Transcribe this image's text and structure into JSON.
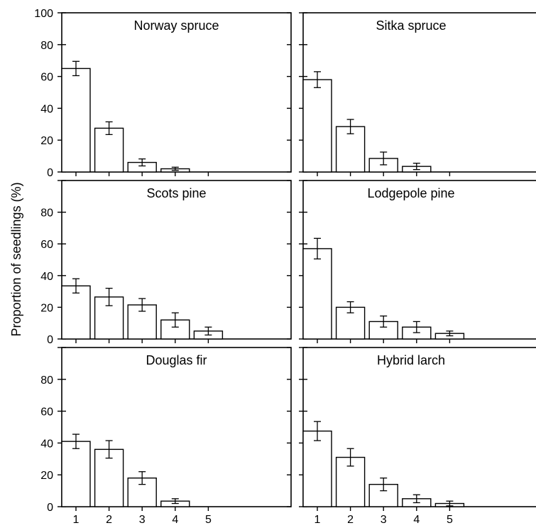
{
  "figure": {
    "ylabel": "Proportion of seedlings (%)"
  },
  "chart_data": [
    {
      "type": "bar",
      "title": "Norway spruce",
      "categories": [
        "1",
        "2",
        "3",
        "4",
        "5"
      ],
      "values": [
        65,
        27.5,
        6,
        2,
        0
      ],
      "errors": [
        4.5,
        4,
        2.2,
        1,
        0
      ],
      "ylim": [
        0,
        100
      ],
      "yticks": [
        0,
        20,
        40,
        60,
        80,
        100
      ],
      "xlabel": "",
      "ylabel": "Proportion of seedlings (%)"
    },
    {
      "type": "bar",
      "title": "Sitka spruce",
      "categories": [
        "1",
        "2",
        "3",
        "4",
        "5"
      ],
      "values": [
        58,
        28.5,
        8.5,
        3.5,
        0
      ],
      "errors": [
        5,
        4.5,
        4,
        2,
        0
      ],
      "ylim": [
        0,
        100
      ],
      "yticks": [],
      "xlabel": "",
      "ylabel": ""
    },
    {
      "type": "bar",
      "title": "Scots pine",
      "categories": [
        "1",
        "2",
        "3",
        "4",
        "5"
      ],
      "values": [
        33.5,
        26.5,
        21.5,
        12,
        5
      ],
      "errors": [
        4.5,
        5.5,
        4,
        4.5,
        2.5
      ],
      "ylim": [
        0,
        100
      ],
      "yticks": [
        0,
        20,
        40,
        60,
        80
      ],
      "xlabel": "",
      "ylabel": ""
    },
    {
      "type": "bar",
      "title": "Lodgepole pine",
      "categories": [
        "1",
        "2",
        "3",
        "4",
        "5"
      ],
      "values": [
        57,
        20,
        11,
        7.5,
        3.5
      ],
      "errors": [
        6.5,
        3.5,
        3.5,
        3.5,
        1.5
      ],
      "ylim": [
        0,
        100
      ],
      "yticks": [],
      "xlabel": "",
      "ylabel": ""
    },
    {
      "type": "bar",
      "title": "Douglas fir",
      "categories": [
        "1",
        "2",
        "3",
        "4",
        "5"
      ],
      "values": [
        41,
        36,
        18,
        3.5,
        0
      ],
      "errors": [
        4.5,
        5.5,
        4,
        1.5,
        0
      ],
      "ylim": [
        0,
        100
      ],
      "yticks": [
        0,
        20,
        40,
        60,
        80
      ],
      "xlabel": "",
      "ylabel": ""
    },
    {
      "type": "bar",
      "title": "Hybrid larch",
      "categories": [
        "1",
        "2",
        "3",
        "4",
        "5"
      ],
      "values": [
        47.5,
        31,
        14,
        5,
        2
      ],
      "errors": [
        6,
        5.5,
        4,
        2.5,
        1.5
      ],
      "ylim": [
        0,
        100
      ],
      "yticks": [],
      "xlabel": "",
      "ylabel": ""
    }
  ]
}
